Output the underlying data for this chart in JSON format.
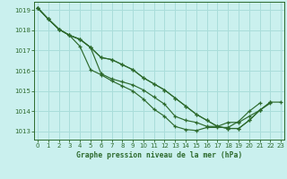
{
  "title": "Graphe pression niveau de la mer (hPa)",
  "background_color": "#caf0ee",
  "grid_color": "#aaddda",
  "line_color": "#2d6a2d",
  "marker_color": "#2d6a2d",
  "xlim": [
    -0.3,
    23.3
  ],
  "ylim": [
    1012.6,
    1019.4
  ],
  "yticks": [
    1013,
    1014,
    1015,
    1016,
    1017,
    1018,
    1019
  ],
  "xticks": [
    0,
    1,
    2,
    3,
    4,
    5,
    6,
    7,
    8,
    9,
    10,
    11,
    12,
    13,
    14,
    15,
    16,
    17,
    18,
    19,
    20,
    21,
    22,
    23
  ],
  "series": [
    [
      1019.1,
      1018.55,
      1018.05,
      1017.75,
      1017.2,
      1016.05,
      1015.8,
      1015.5,
      1015.25,
      1015.0,
      1014.6,
      1014.1,
      1013.75,
      1013.25,
      1013.1,
      1013.05,
      1013.2,
      1013.2,
      1013.2,
      1013.5,
      1014.0,
      1014.4,
      null,
      null
    ],
    [
      1019.1,
      1018.55,
      1018.05,
      1017.75,
      1017.55,
      1017.15,
      1015.85,
      1015.6,
      1015.45,
      1015.3,
      1015.05,
      1014.7,
      1014.35,
      1013.75,
      1013.55,
      1013.45,
      1013.25,
      1013.25,
      1013.45,
      1013.45,
      1013.75,
      1014.05,
      1014.4,
      null
    ],
    [
      1019.1,
      1018.55,
      1018.05,
      1017.75,
      1017.55,
      1017.15,
      1016.65,
      1016.55,
      1016.3,
      1016.05,
      1015.65,
      1015.35,
      1015.05,
      1014.65,
      1014.25,
      1013.85,
      1013.55,
      1013.25,
      1013.15,
      1013.15,
      1013.55,
      1014.05,
      1014.45,
      null
    ],
    [
      1019.1,
      1018.55,
      1018.05,
      1017.75,
      1017.55,
      1017.15,
      1016.65,
      1016.55,
      1016.3,
      1016.05,
      1015.65,
      1015.35,
      1015.05,
      1014.65,
      1014.25,
      1013.85,
      1013.55,
      1013.25,
      1013.15,
      1013.15,
      1013.55,
      1014.05,
      1014.45,
      1014.45
    ]
  ]
}
